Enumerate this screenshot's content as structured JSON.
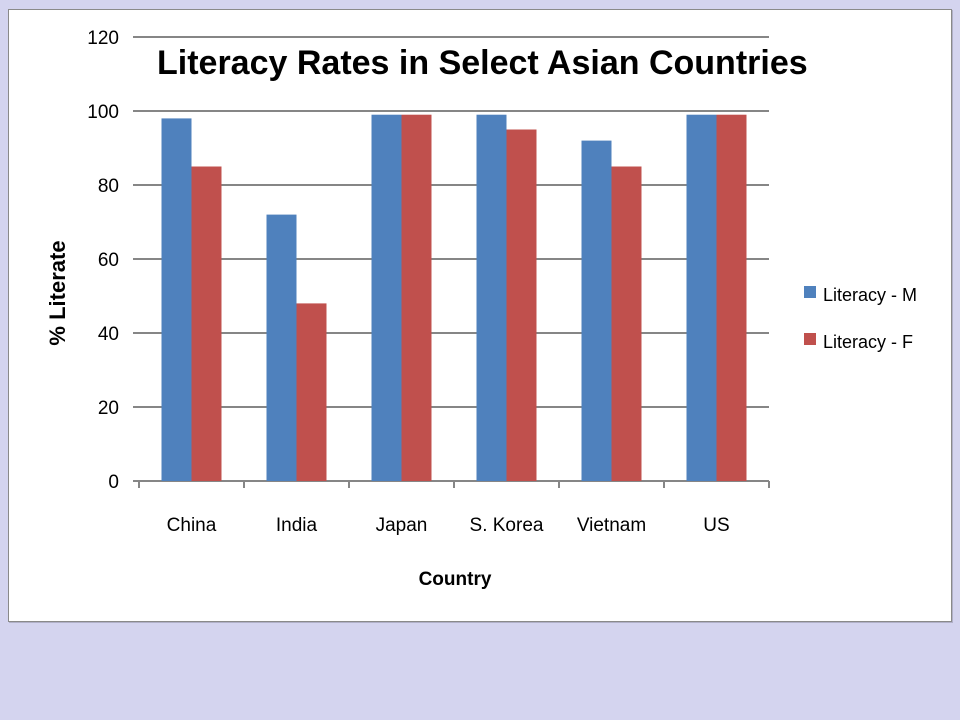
{
  "chart_data": {
    "type": "bar",
    "title": "Literacy Rates in Select Asian Countries",
    "xlabel": "Country",
    "ylabel": "% Literate",
    "categories": [
      "China",
      "India",
      "Japan",
      "S. Korea",
      "Vietnam",
      "US"
    ],
    "series": [
      {
        "name": "Literacy - M",
        "color": "#4f81bd",
        "values": [
          98,
          72,
          99,
          99,
          92,
          99
        ]
      },
      {
        "name": "Literacy - F",
        "color": "#c0504d",
        "values": [
          85,
          48,
          99,
          95,
          85,
          99
        ]
      }
    ],
    "yticks": [
      "0",
      "20",
      "40",
      "60",
      "80",
      "100",
      "120"
    ],
    "ylim": [
      0,
      120
    ],
    "grid": true,
    "legend_position": "right"
  },
  "colors": {
    "slide_background": "#d4d4ef",
    "chart_background": "#ffffff",
    "gridline": "#868686"
  }
}
